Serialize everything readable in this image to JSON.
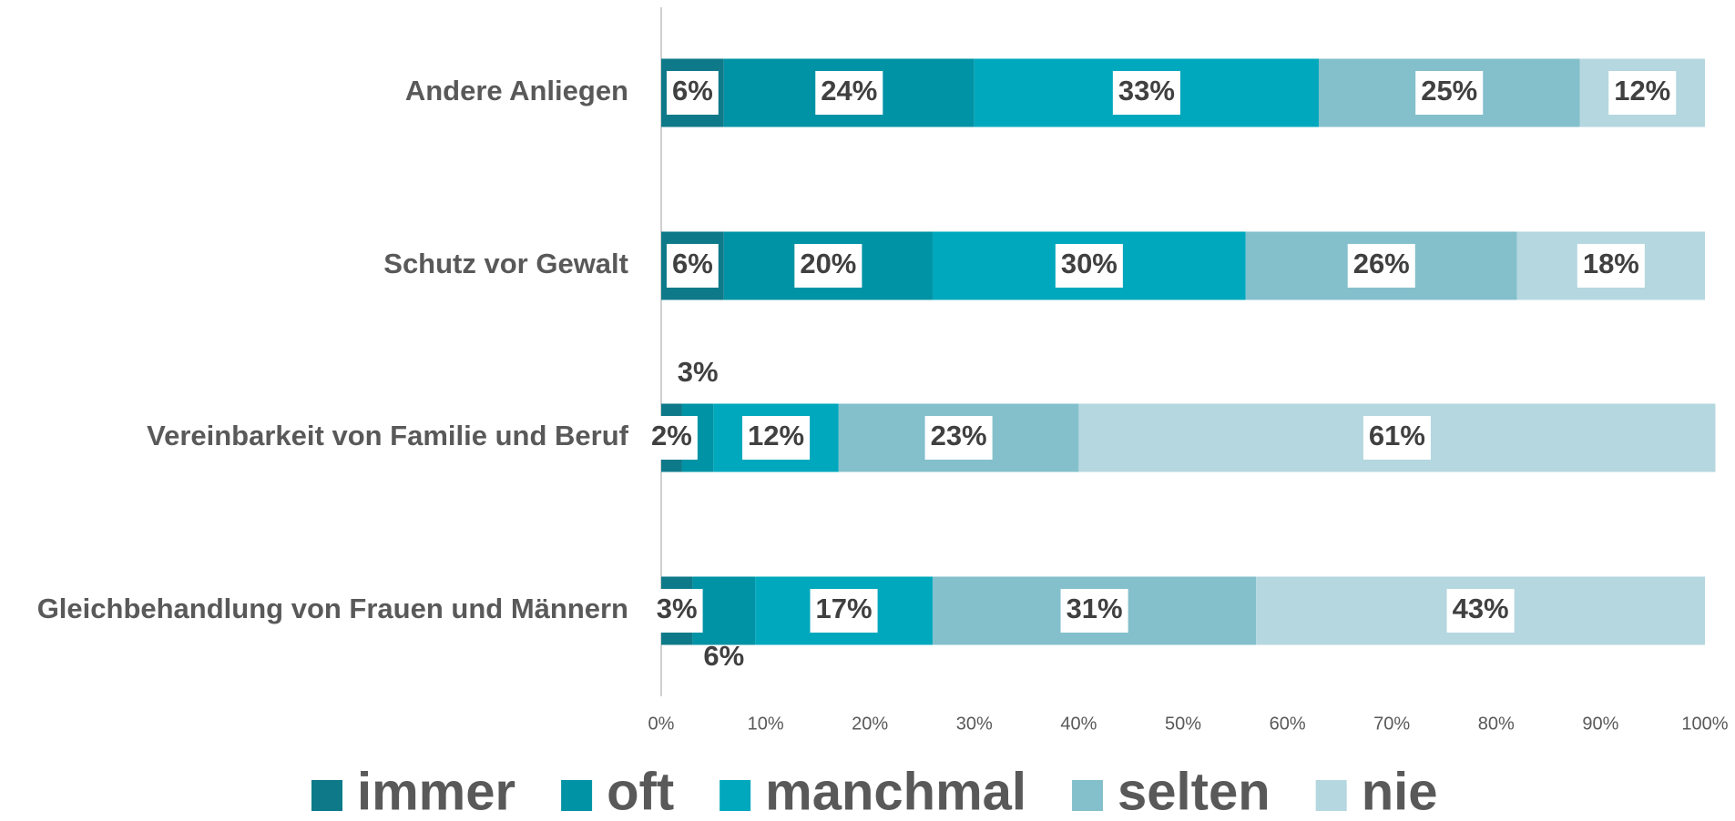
{
  "chart_data": {
    "type": "stacked-bar-horizontal",
    "categories": [
      "Andere Anliegen",
      "Schutz vor Gewalt",
      "Vereinbarkeit von Familie und Beruf",
      "Gleichbehandlung von Frauen und Männern"
    ],
    "series": [
      {
        "name": "immer",
        "color": "#0e7a89",
        "values": [
          6,
          6,
          2,
          3
        ],
        "value_labels": [
          "6%",
          "6%",
          "2%",
          "3%"
        ]
      },
      {
        "name": "oft",
        "color": "#0093a5",
        "values": [
          24,
          20,
          3,
          6
        ],
        "value_labels": [
          "24%",
          "20%",
          "3%",
          "6%"
        ]
      },
      {
        "name": "manchmal",
        "color": "#00a8bd",
        "values": [
          33,
          30,
          12,
          17
        ],
        "value_labels": [
          "33%",
          "30%",
          "12%",
          "17%"
        ]
      },
      {
        "name": "selten",
        "color": "#84c0cc",
        "values": [
          25,
          26,
          23,
          31
        ],
        "value_labels": [
          "25%",
          "26%",
          "23%",
          "31%"
        ]
      },
      {
        "name": "nie",
        "color": "#b5d7df",
        "values": [
          12,
          18,
          61,
          43
        ],
        "value_labels": [
          "12%",
          "18%",
          "61%",
          "43%"
        ]
      }
    ],
    "xlim": [
      0,
      100
    ],
    "xticks": [
      {
        "value": 0,
        "label": "0%"
      },
      {
        "value": 10,
        "label": "10%"
      },
      {
        "value": 20,
        "label": "20%"
      },
      {
        "value": 30,
        "label": "30%"
      },
      {
        "value": 40,
        "label": "40%"
      },
      {
        "value": 50,
        "label": "50%"
      },
      {
        "value": 60,
        "label": "60%"
      },
      {
        "value": 70,
        "label": "70%"
      },
      {
        "value": 80,
        "label": "80%"
      },
      {
        "value": 90,
        "label": "90%"
      },
      {
        "value": 100,
        "label": "100%"
      }
    ],
    "legend": "bottom"
  }
}
